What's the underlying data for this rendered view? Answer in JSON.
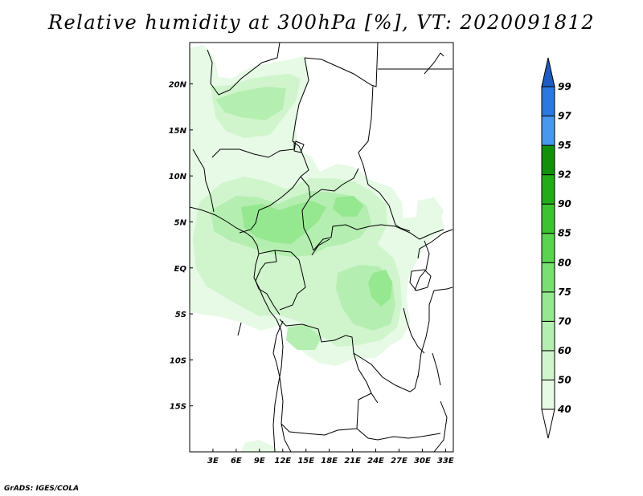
{
  "title": "Relative humidity at 300hPa [%], VT: 2020091812",
  "footer": "GrADS: IGES/COLA",
  "map": {
    "region": "Central Africa",
    "lon_range": [
      0,
      34
    ],
    "lat_range": [
      -20,
      24.5
    ],
    "lon_ticks": [
      "3E",
      "6E",
      "9E",
      "12E",
      "15E",
      "18E",
      "21E",
      "24E",
      "27E",
      "30E",
      "33E"
    ],
    "lat_ticks": [
      "20N",
      "15N",
      "10N",
      "5N",
      "EQ",
      "5S",
      "10S",
      "15S"
    ]
  },
  "colorbar": {
    "levels": [
      "40",
      "50",
      "60",
      "70",
      "75",
      "80",
      "85",
      "90",
      "92",
      "95",
      "97",
      "99"
    ],
    "colors": [
      "#ffffff",
      "#e6fae6",
      "#d0f5cc",
      "#b4eeb0",
      "#96e890",
      "#78e070",
      "#5ad44e",
      "#3cc430",
      "#22ac18",
      "#12900c",
      "#4898f0",
      "#2a78e0",
      "#1e5cc0"
    ]
  }
}
